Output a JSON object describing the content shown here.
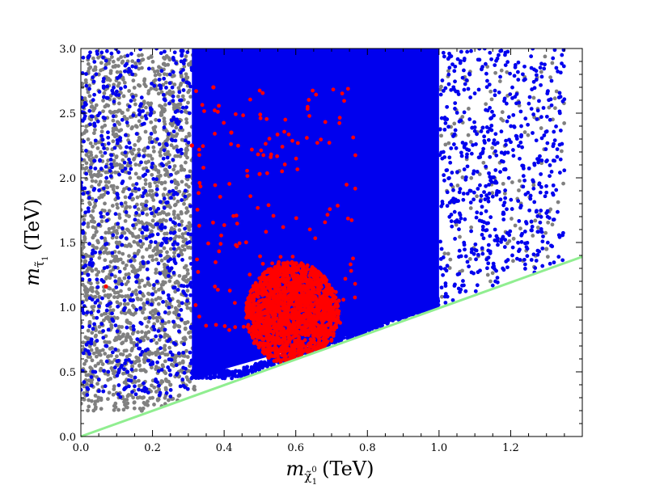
{
  "chart_data": {
    "type": "scatter",
    "title": "",
    "xlabel": {
      "main": "m",
      "sub": "χ̃",
      "subsup": "0",
      "subsub": "1",
      "unit": "(TeV)"
    },
    "ylabel": {
      "main": "m",
      "sub": "τ̃",
      "subsub": "1",
      "unit": "(TeV)"
    },
    "xlim": [
      0.0,
      1.4
    ],
    "ylim": [
      0.0,
      3.0
    ],
    "xticks": [
      "0.0",
      "0.2",
      "0.4",
      "0.6",
      "0.8",
      "1.0",
      "1.2"
    ],
    "yticks": [
      "0.0",
      "0.5",
      "1.0",
      "1.5",
      "2.0",
      "2.5",
      "3.0"
    ],
    "grid": false,
    "legend": "none",
    "colors": {
      "gray": "#808080",
      "blue": "#0000ee",
      "red": "#ff0000",
      "line": "#90ee90"
    },
    "boundary_line": {
      "x": [
        0.0,
        1.4
      ],
      "y": [
        0.0,
        1.39
      ]
    },
    "series": [
      {
        "color": "gray",
        "regions": [
          {
            "x": [
              0.0,
              0.32
            ],
            "y": [
              0.2,
              2.95
            ],
            "density": "dense"
          },
          {
            "x": [
              1.0,
              1.35
            ],
            "y": [
              0.9,
              2.95
            ],
            "density": "sparse"
          }
        ],
        "points": [
          [
            0.05,
            2.8
          ],
          [
            0.02,
            2.2
          ],
          [
            0.1,
            1.5
          ],
          [
            0.18,
            0.25
          ],
          [
            0.17,
            0.2
          ],
          [
            0.25,
            0.4
          ],
          [
            1.3,
            1.45
          ]
        ]
      },
      {
        "color": "blue",
        "regions": [
          {
            "x": [
              0.31,
              1.0
            ],
            "y": [
              0.45,
              3.0
            ],
            "density": "solid"
          },
          {
            "x": [
              0.0,
              0.31
            ],
            "y": [
              0.3,
              3.0
            ],
            "density": "scattered"
          },
          {
            "x": [
              1.0,
              1.35
            ],
            "y": [
              1.0,
              3.0
            ],
            "density": "scattered"
          }
        ],
        "points": [
          [
            0.02,
            1.25
          ],
          [
            0.13,
            0.5
          ],
          [
            0.2,
            1.1
          ],
          [
            0.28,
            2.6
          ]
        ]
      },
      {
        "color": "red",
        "regions": [
          {
            "x": [
              0.46,
              0.72
            ],
            "y": [
              0.55,
              1.35
            ],
            "density": "dense"
          },
          {
            "x": [
              0.32,
              0.77
            ],
            "y": [
              0.8,
              2.7
            ],
            "density": "sparse"
          }
        ],
        "points": [
          [
            0.55,
            1.0
          ],
          [
            0.57,
            0.9
          ],
          [
            0.52,
            1.1
          ],
          [
            0.37,
            2.7
          ],
          [
            0.31,
            2.25
          ],
          [
            0.42,
            2.35
          ],
          [
            0.62,
            1.3
          ],
          [
            0.72,
            1.05
          ],
          [
            0.07,
            1.16
          ]
        ]
      }
    ]
  }
}
